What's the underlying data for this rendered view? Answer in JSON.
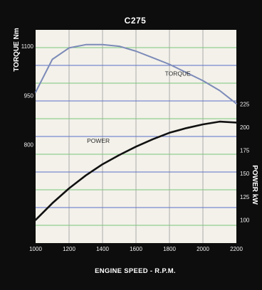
{
  "chart_data": {
    "type": "line",
    "title": "C275",
    "xlabel": "ENGINE SPEED - R.P.M.",
    "x_ticks": [
      1000,
      1200,
      1400,
      1600,
      1800,
      2000,
      2200
    ],
    "xlim": [
      1000,
      2200
    ],
    "left_axis": {
      "label": "TORQUE Nm",
      "ticks": [
        800,
        950,
        1100
      ],
      "ylim": [
        500,
        1150
      ]
    },
    "right_axis": {
      "label": "POWER kW",
      "ticks": [
        100,
        125,
        150,
        175,
        200,
        225
      ],
      "ylim": [
        75,
        305
      ]
    },
    "grid": true,
    "series": [
      {
        "name": "TORQUE",
        "axis": "left",
        "color": "#7c8ab8",
        "x": [
          1000,
          1100,
          1200,
          1300,
          1400,
          1500,
          1600,
          1700,
          1800,
          1900,
          2000,
          2100,
          2200
        ],
        "y": [
          960,
          1060,
          1095,
          1105,
          1105,
          1100,
          1085,
          1065,
          1045,
          1020,
          995,
          965,
          925
        ]
      },
      {
        "name": "POWER",
        "axis": "right",
        "color": "#111111",
        "x": [
          1000,
          1100,
          1200,
          1300,
          1400,
          1500,
          1600,
          1700,
          1800,
          1900,
          2000,
          2100,
          2200
        ],
        "y": [
          100,
          118,
          134,
          148,
          160,
          170,
          179,
          187,
          194,
          199,
          203,
          206,
          205
        ]
      }
    ]
  },
  "colors": {
    "frame": "#0d0d0d",
    "plot_background": "#f3f1ea",
    "grid_green": "#7ac77a",
    "grid_blue": "#5b70c8",
    "grid_vertical": "#9a9a9a"
  }
}
